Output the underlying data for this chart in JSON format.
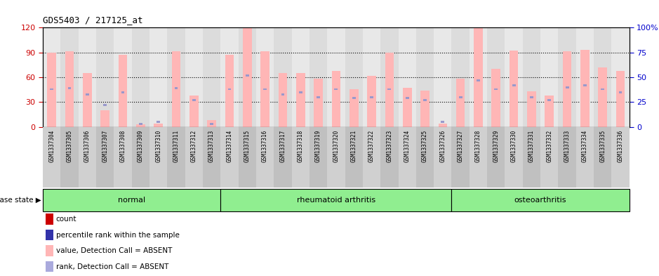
{
  "title": "GDS5403 / 217125_at",
  "samples": [
    "GSM1337304",
    "GSM1337305",
    "GSM1337306",
    "GSM1337307",
    "GSM1337308",
    "GSM1337309",
    "GSM1337310",
    "GSM1337311",
    "GSM1337312",
    "GSM1337313",
    "GSM1337314",
    "GSM1337315",
    "GSM1337316",
    "GSM1337317",
    "GSM1337318",
    "GSM1337319",
    "GSM1337320",
    "GSM1337321",
    "GSM1337322",
    "GSM1337323",
    "GSM1337324",
    "GSM1337325",
    "GSM1337326",
    "GSM1337327",
    "GSM1337328",
    "GSM1337329",
    "GSM1337330",
    "GSM1337331",
    "GSM1337332",
    "GSM1337333",
    "GSM1337334",
    "GSM1337335",
    "GSM1337336"
  ],
  "values": [
    90,
    91,
    65,
    20,
    87,
    3,
    4,
    91,
    38,
    8,
    87,
    120,
    91,
    65,
    65,
    58,
    68,
    46,
    62,
    90,
    47,
    44,
    4,
    58,
    120,
    70,
    92,
    43,
    38,
    91,
    93,
    72,
    68
  ],
  "percentile_ranks": [
    38,
    39,
    33,
    22,
    35,
    3,
    5,
    39,
    27,
    3,
    38,
    52,
    38,
    33,
    35,
    30,
    38,
    29,
    30,
    38,
    29,
    27,
    5,
    30,
    47,
    38,
    42,
    30,
    27,
    40,
    42,
    38,
    35
  ],
  "bar_color": "#ffb6b6",
  "rank_color": "#9999cc",
  "ylim_left": [
    0,
    120
  ],
  "ylim_right": [
    0,
    100
  ],
  "yticks_left": [
    0,
    30,
    60,
    90,
    120
  ],
  "yticks_right": [
    0,
    25,
    50,
    75,
    100
  ],
  "grid_values": [
    30,
    60,
    90
  ],
  "bar_width": 0.5,
  "background_color": "#ffffff",
  "tick_color_left": "#cc0000",
  "tick_color_right": "#0000cc",
  "group_defs": [
    {
      "start": 0,
      "end": 10,
      "label": "normal",
      "color": "#90ee90"
    },
    {
      "start": 10,
      "end": 23,
      "label": "rheumatoid arthritis",
      "color": "#90ee90"
    },
    {
      "start": 23,
      "end": 33,
      "label": "osteoarthritis",
      "color": "#90ee90"
    }
  ],
  "legend_items": [
    {
      "label": "count",
      "color": "#cc0000"
    },
    {
      "label": "percentile rank within the sample",
      "color": "#3333aa"
    },
    {
      "label": "value, Detection Call = ABSENT",
      "color": "#ffb6b6"
    },
    {
      "label": "rank, Detection Call = ABSENT",
      "color": "#aaaadd"
    }
  ],
  "disease_state_label": "disease state"
}
